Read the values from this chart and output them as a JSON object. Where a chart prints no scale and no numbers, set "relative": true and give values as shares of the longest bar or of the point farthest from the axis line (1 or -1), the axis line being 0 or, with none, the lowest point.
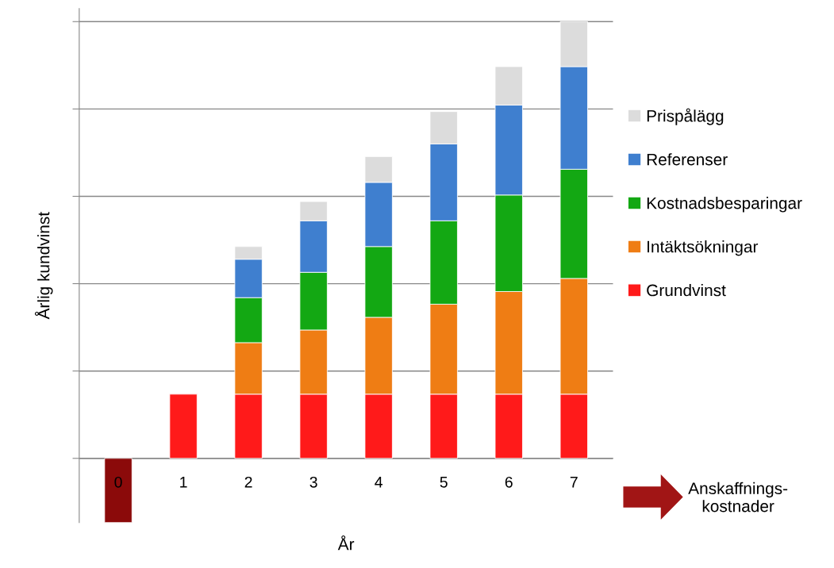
{
  "chart_data": {
    "type": "bar",
    "stacked": true,
    "relative": true,
    "xlabel": "År",
    "ylabel": "Årlig kundvinst",
    "categories": [
      "0",
      "1",
      "2",
      "3",
      "4",
      "5",
      "6",
      "7"
    ],
    "series": [
      {
        "name": "Grundvinst",
        "color": "#ff1a1a",
        "colors": [
          "#8b0a0a",
          "#ff1a1a",
          "#ff1a1a",
          "#ff1a1a",
          "#ff1a1a",
          "#ff1a1a",
          "#ff1a1a",
          "#ff1a1a"
        ],
        "values": [
          -0.147,
          0.147,
          0.147,
          0.147,
          0.147,
          0.147,
          0.147,
          0.147
        ]
      },
      {
        "name": "Intäktsökningar",
        "color": "#ef7d14",
        "values": [
          null,
          null,
          0.118,
          0.147,
          0.176,
          0.206,
          0.235,
          0.265
        ]
      },
      {
        "name": "Kostnadsbesparingar",
        "color": "#13a813",
        "values": [
          null,
          null,
          0.103,
          0.132,
          0.162,
          0.191,
          0.221,
          0.25
        ]
      },
      {
        "name": "Referenser",
        "color": "#3f7fcf",
        "values": [
          null,
          null,
          0.088,
          0.118,
          0.147,
          0.176,
          0.206,
          0.235
        ]
      },
      {
        "name": "Prispålägg",
        "color": "#dcdcdc",
        "values": [
          null,
          null,
          0.029,
          0.044,
          0.059,
          0.074,
          0.088,
          0.103
        ]
      }
    ],
    "annotations": [
      "Anskaffnings-\nkostnader"
    ],
    "grid": "y",
    "legend": "right"
  }
}
